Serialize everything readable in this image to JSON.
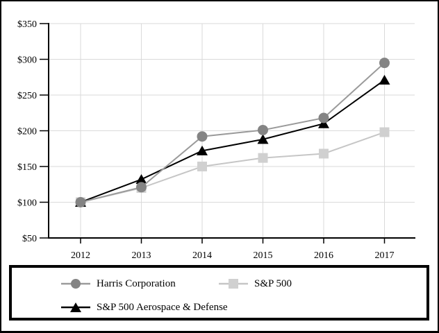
{
  "page": {
    "background": "#ffffff",
    "frame_color": "#000000"
  },
  "chart_data": {
    "type": "line",
    "x_labels": [
      "2012",
      "2013",
      "2014",
      "2015",
      "2016",
      "2017"
    ],
    "series": [
      {
        "name": "Harris Corporation",
        "marker": "circle",
        "line_color": "#9a9a9a",
        "marker_color": "#848484",
        "z": 2,
        "values": [
          100,
          121,
          192,
          201,
          218,
          295
        ]
      },
      {
        "name": "S&P 500",
        "marker": "square",
        "line_color": "#c6c6c6",
        "marker_color": "#d0d0d0",
        "z": 0,
        "values": [
          100,
          120,
          150,
          162,
          168,
          198
        ]
      },
      {
        "name": "S&P 500 Aerospace & Defense",
        "marker": "triangle",
        "line_color": "#000000",
        "marker_color": "#000000",
        "z": 1,
        "values": [
          100,
          132,
          172,
          188,
          210,
          271
        ]
      }
    ],
    "ylim": [
      50,
      350
    ],
    "ytick_step": 50,
    "y_tick_labels": [
      "$50",
      "$100",
      "$150",
      "$200",
      "$250",
      "$300",
      "$350"
    ],
    "y_tick_prefix": "$",
    "grid": true,
    "gridline_color": "#dadada",
    "axis_color": "#000000",
    "legend_position": "bottom-box"
  }
}
